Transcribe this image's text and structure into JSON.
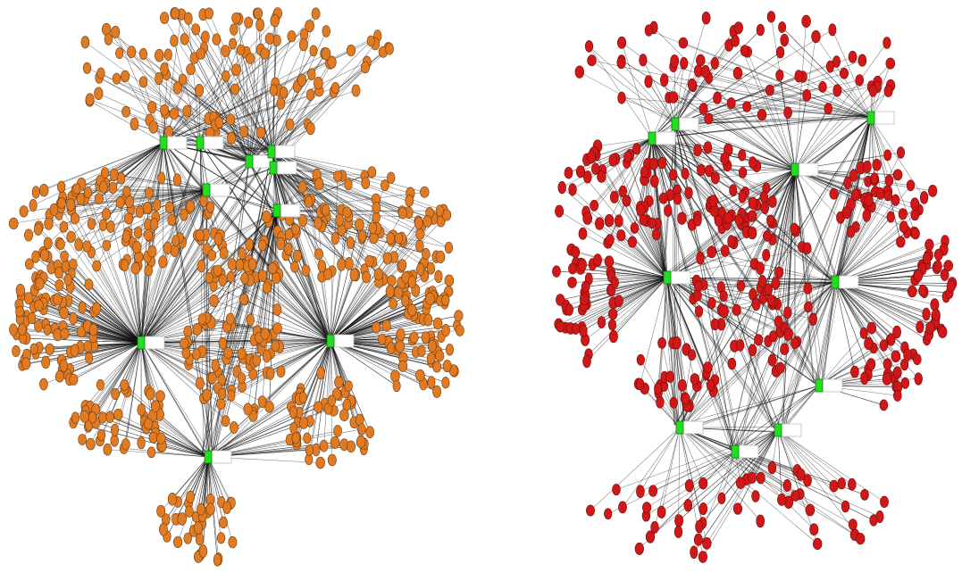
{
  "networks": [
    {
      "id": "left",
      "node_color": "#e07b24",
      "hub_color": "#22dd22",
      "edge_color": "#111111",
      "hub_count": 10,
      "leaf_count_estimate": 700
    },
    {
      "id": "right",
      "node_color": "#d01818",
      "hub_color": "#22dd22",
      "edge_color": "#111111",
      "hub_count": 10,
      "leaf_count_estimate": 420
    }
  ]
}
